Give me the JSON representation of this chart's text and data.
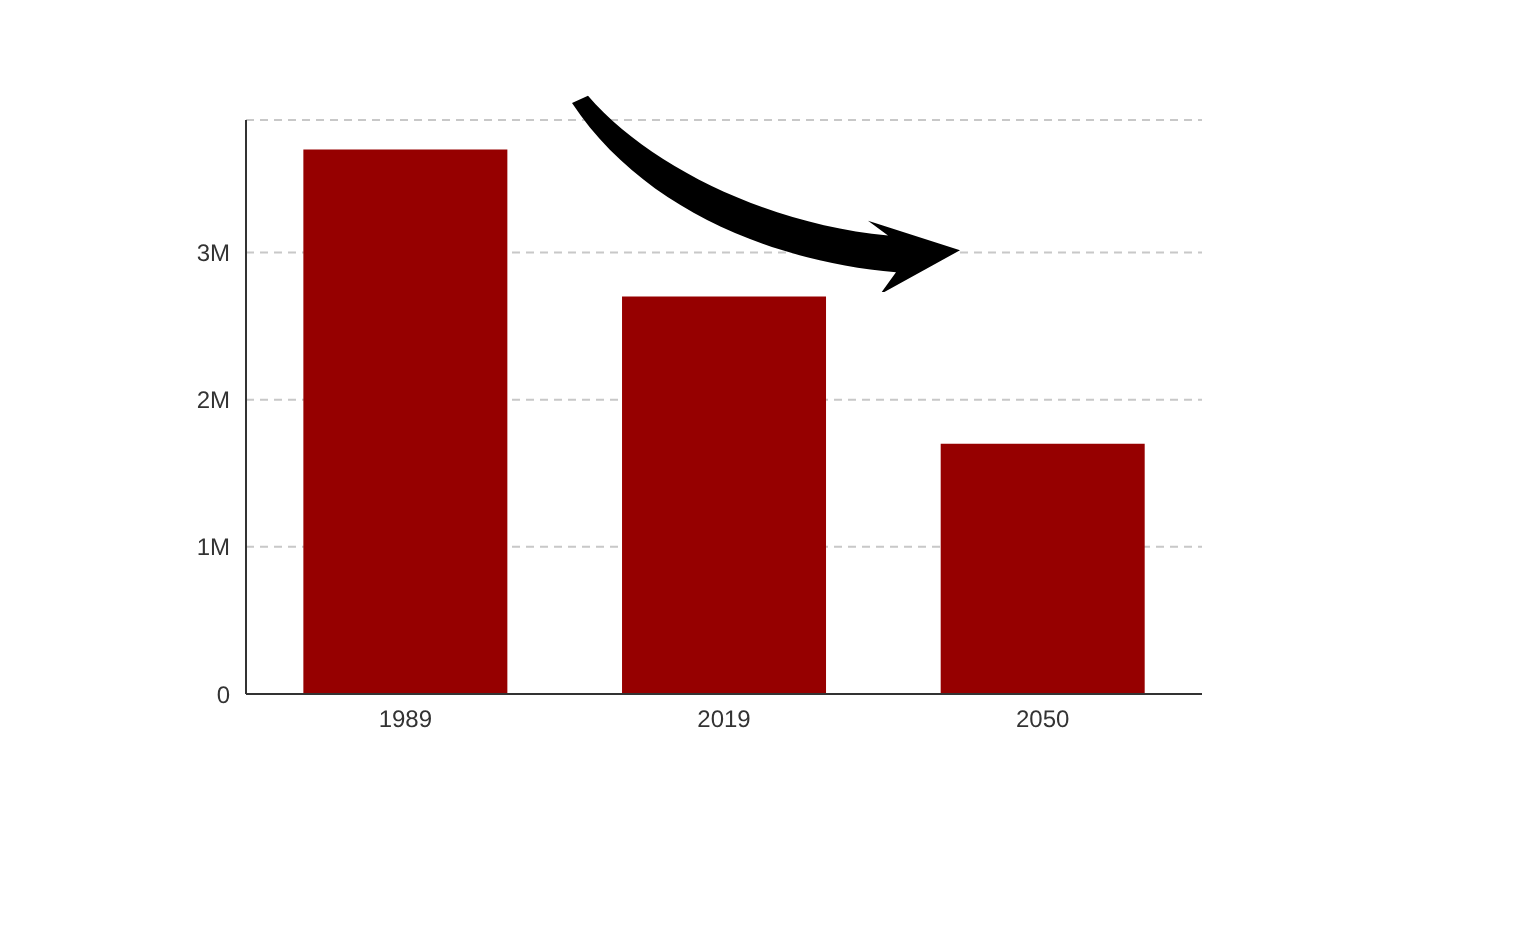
{
  "chart_data": {
    "type": "bar",
    "categories": [
      "1989",
      "2019",
      "2050"
    ],
    "values": [
      3700000,
      2700000,
      1700000
    ],
    "color": "#960000",
    "ylim": [
      0,
      3900000
    ],
    "yticks": [
      0,
      {
        "value": 1000000,
        "label": "1M"
      },
      {
        "value": 2000000,
        "label": "2M"
      },
      {
        "value": 3000000,
        "label": "3M"
      }
    ],
    "grid": "y"
  }
}
